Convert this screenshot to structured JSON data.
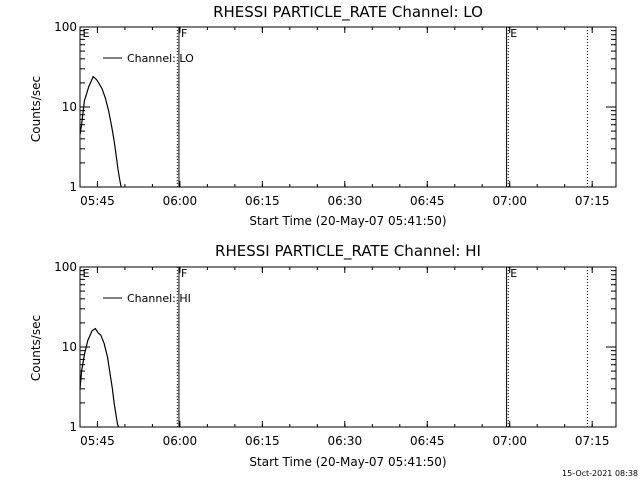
{
  "footer_timestamp": "15-Oct-2021 08:38",
  "chart_data": [
    {
      "type": "line",
      "title": "RHESSI PARTICLE_RATE Channel: LO",
      "xlabel": "Start Time (20-May-07 05:41:50)",
      "ylabel": "Counts/sec",
      "yscale": "log",
      "ylim": [
        1,
        100
      ],
      "ytick_labels": [
        {
          "value": 1,
          "label": "1"
        },
        {
          "value": 10,
          "label": "10"
        },
        {
          "value": 100,
          "label": "100"
        }
      ],
      "xlim_minutes": [
        0,
        97.5
      ],
      "xtick_labels": [
        {
          "minute": 3.17,
          "label": "05:45"
        },
        {
          "minute": 18.17,
          "label": "06:00"
        },
        {
          "minute": 33.17,
          "label": "06:15"
        },
        {
          "minute": 48.17,
          "label": "06:30"
        },
        {
          "minute": 63.17,
          "label": "06:45"
        },
        {
          "minute": 78.17,
          "label": "07:00"
        },
        {
          "minute": 93.17,
          "label": "07:15"
        }
      ],
      "legend": {
        "label": "Channel: LO",
        "position": "top-left"
      },
      "markers": [
        {
          "minute": 0.1,
          "label": "E",
          "style": "none"
        },
        {
          "minute": 17.7,
          "label": "",
          "style": "dotted"
        },
        {
          "minute": 18.0,
          "label": "F",
          "style": "solid"
        },
        {
          "minute": 77.6,
          "label": "",
          "style": "solid"
        },
        {
          "minute": 77.9,
          "label": "E",
          "style": "dotted"
        },
        {
          "minute": 92.3,
          "label": "",
          "style": "dotted"
        }
      ],
      "series": [
        {
          "name": "Channel: LO",
          "x": [
            0.0,
            0.3,
            0.8,
            1.6,
            2.4,
            3.0,
            3.4,
            4.0,
            4.6,
            5.2,
            5.8,
            6.2,
            6.6,
            6.9,
            7.2,
            7.5
          ],
          "y": [
            4.5,
            6.0,
            12.0,
            18.0,
            24.0,
            22.0,
            20.0,
            17.0,
            13.0,
            9.0,
            5.5,
            3.8,
            2.4,
            1.7,
            1.25,
            1.0
          ]
        }
      ]
    },
    {
      "type": "line",
      "title": "RHESSI PARTICLE_RATE Channel: HI",
      "xlabel": "Start Time (20-May-07 05:41:50)",
      "ylabel": "Counts/sec",
      "yscale": "log",
      "ylim": [
        1,
        100
      ],
      "ytick_labels": [
        {
          "value": 1,
          "label": "1"
        },
        {
          "value": 10,
          "label": "10"
        },
        {
          "value": 100,
          "label": "100"
        }
      ],
      "xlim_minutes": [
        0,
        97.5
      ],
      "xtick_labels": [
        {
          "minute": 3.17,
          "label": "05:45"
        },
        {
          "minute": 18.17,
          "label": "06:00"
        },
        {
          "minute": 33.17,
          "label": "06:15"
        },
        {
          "minute": 48.17,
          "label": "06:30"
        },
        {
          "minute": 63.17,
          "label": "06:45"
        },
        {
          "minute": 78.17,
          "label": "07:00"
        },
        {
          "minute": 93.17,
          "label": "07:15"
        }
      ],
      "legend": {
        "label": "Channel: HI",
        "position": "top-left"
      },
      "markers": [
        {
          "minute": 0.1,
          "label": "E",
          "style": "none"
        },
        {
          "minute": 17.7,
          "label": "",
          "style": "dotted"
        },
        {
          "minute": 18.0,
          "label": "F",
          "style": "solid"
        },
        {
          "minute": 77.6,
          "label": "",
          "style": "solid"
        },
        {
          "minute": 77.9,
          "label": "E",
          "style": "dotted"
        },
        {
          "minute": 92.3,
          "label": "",
          "style": "dotted"
        }
      ],
      "series": [
        {
          "name": "Channel: HI",
          "x": [
            0.0,
            0.3,
            0.8,
            1.4,
            2.2,
            2.8,
            3.3,
            3.8,
            4.4,
            5.0,
            5.5,
            5.9,
            6.2,
            6.5,
            6.8,
            7.0
          ],
          "y": [
            3.0,
            5.0,
            8.0,
            12.0,
            16.0,
            17.0,
            15.0,
            14.0,
            11.0,
            7.5,
            4.5,
            3.0,
            2.0,
            1.5,
            1.1,
            1.0
          ]
        }
      ]
    }
  ]
}
